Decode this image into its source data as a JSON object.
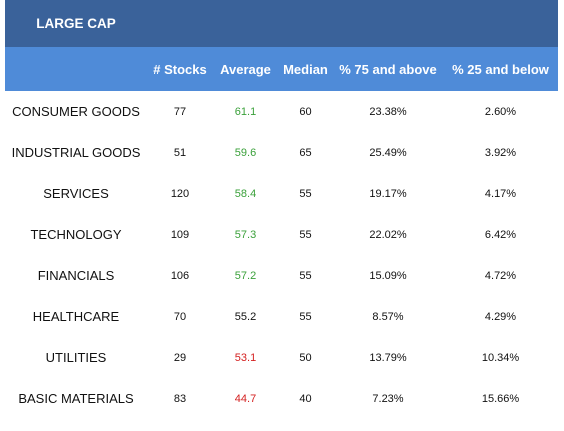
{
  "table": {
    "title": "LARGE CAP",
    "headers": [
      "# Stocks",
      "Average",
      "Median",
      "% 75 and above",
      "% 25 and below"
    ],
    "rows": [
      {
        "sector": "CONSUMER GOODS",
        "stocks": "77",
        "average": "61.1",
        "avg_color": "green",
        "median": "60",
        "above75": "23.38%",
        "below25": "2.60%"
      },
      {
        "sector": "INDUSTRIAL GOODS",
        "stocks": "51",
        "average": "59.6",
        "avg_color": "green",
        "median": "65",
        "above75": "25.49%",
        "below25": "3.92%"
      },
      {
        "sector": "SERVICES",
        "stocks": "120",
        "average": "58.4",
        "avg_color": "green",
        "median": "55",
        "above75": "19.17%",
        "below25": "4.17%"
      },
      {
        "sector": "TECHNOLOGY",
        "stocks": "109",
        "average": "57.3",
        "avg_color": "green",
        "median": "55",
        "above75": "22.02%",
        "below25": "6.42%"
      },
      {
        "sector": "FINANCIALS",
        "stocks": "106",
        "average": "57.2",
        "avg_color": "green",
        "median": "55",
        "above75": "15.09%",
        "below25": "4.72%"
      },
      {
        "sector": "HEALTHCARE",
        "stocks": "70",
        "average": "55.2",
        "avg_color": "black",
        "median": "55",
        "above75": "8.57%",
        "below25": "4.29%"
      },
      {
        "sector": "UTILITIES",
        "stocks": "29",
        "average": "53.1",
        "avg_color": "red",
        "median": "50",
        "above75": "13.79%",
        "below25": "10.34%"
      },
      {
        "sector": "BASIC MATERIALS",
        "stocks": "83",
        "average": "44.7",
        "avg_color": "red",
        "median": "40",
        "above75": "7.23%",
        "below25": "15.66%"
      }
    ]
  },
  "colors": {
    "title_bg": "#3a629a",
    "header_bg": "#4f8bd8",
    "green": "#3aa03a",
    "red": "#d42020"
  }
}
